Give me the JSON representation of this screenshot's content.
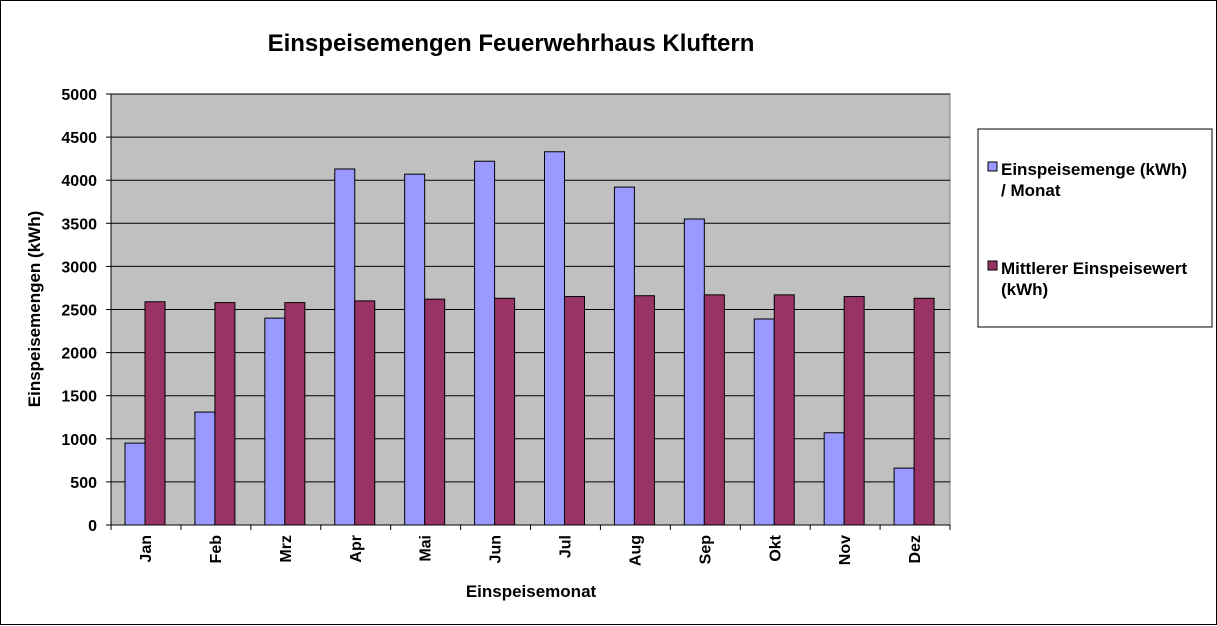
{
  "chart_data": {
    "type": "bar",
    "title": "Einspeisemengen Feuerwehrhaus Kluftern",
    "xlabel": "Einspeisemonat",
    "ylabel": "Einspeisemengen (kWh)",
    "ylim": [
      0,
      5000
    ],
    "yticks": [
      0,
      500,
      1000,
      1500,
      2000,
      2500,
      3000,
      3500,
      4000,
      4500,
      5000
    ],
    "grid": true,
    "legend_position": "right",
    "categories": [
      "Jan",
      "Feb",
      "Mrz",
      "Apr",
      "Mai",
      "Jun",
      "Jul",
      "Aug",
      "Sep",
      "Okt",
      "Nov",
      "Dez"
    ],
    "series": [
      {
        "name_lines": [
          "Einspeisemenge (kWh)",
          "/ Monat"
        ],
        "color": "#9999ff",
        "values": [
          950,
          1310,
          2400,
          4130,
          4070,
          4220,
          4330,
          3920,
          3550,
          2390,
          1070,
          660
        ]
      },
      {
        "name_lines": [
          "Mittlerer Einspeisewert",
          "(kWh)"
        ],
        "color": "#993366",
        "values": [
          2590,
          2580,
          2580,
          2600,
          2620,
          2630,
          2650,
          2660,
          2670,
          2670,
          2650,
          2630
        ]
      }
    ],
    "plot_background": "#c0c0c0"
  }
}
